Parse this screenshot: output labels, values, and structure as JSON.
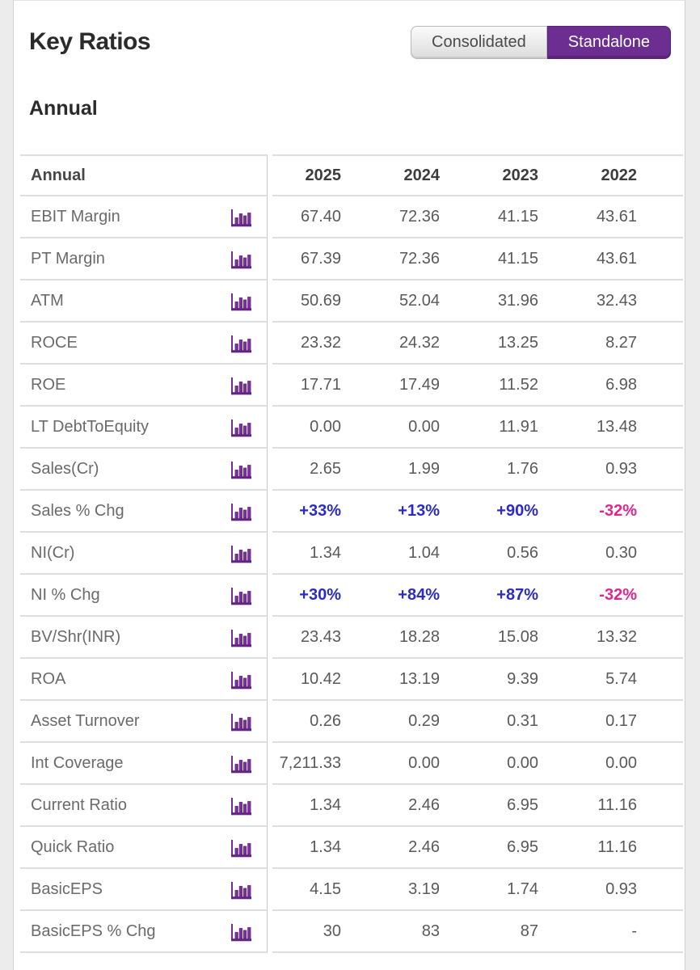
{
  "header": {
    "title": "Key Ratios",
    "toggle": {
      "options": [
        "Consolidated",
        "Standalone"
      ],
      "active": "Standalone"
    }
  },
  "section": {
    "title": "Annual"
  },
  "colors": {
    "accent_purple": "#6c2e91",
    "positive_blue": "#2b2bc8",
    "negative_pink": "#e0268f",
    "icon_purple": "#762d93",
    "row_border": "#dedede"
  },
  "icons": {
    "row_chart_icon": "bar-chart-icon"
  },
  "table": {
    "label_header": "Annual",
    "year_headers": [
      "2025",
      "2024",
      "2023",
      "2022"
    ],
    "rows": [
      {
        "label": "EBIT Margin",
        "values": [
          "67.40",
          "72.36",
          "41.15",
          "43.61"
        ]
      },
      {
        "label": "PT Margin",
        "values": [
          "67.39",
          "72.36",
          "41.15",
          "43.61"
        ]
      },
      {
        "label": "ATM",
        "values": [
          "50.69",
          "52.04",
          "31.96",
          "32.43"
        ]
      },
      {
        "label": "ROCE",
        "values": [
          "23.32",
          "24.32",
          "13.25",
          "8.27"
        ]
      },
      {
        "label": "ROE",
        "values": [
          "17.71",
          "17.49",
          "11.52",
          "6.98"
        ]
      },
      {
        "label": "LT DebtToEquity",
        "values": [
          "0.00",
          "0.00",
          "11.91",
          "13.48"
        ]
      },
      {
        "label": "Sales(Cr)",
        "values": [
          "2.65",
          "1.99",
          "1.76",
          "0.93"
        ]
      },
      {
        "label": "Sales % Chg",
        "values": [
          "+33%",
          "+13%",
          "+90%",
          "-32%"
        ],
        "value_styles": [
          "pos",
          "pos",
          "pos",
          "neg"
        ]
      },
      {
        "label": "NI(Cr)",
        "values": [
          "1.34",
          "1.04",
          "0.56",
          "0.30"
        ]
      },
      {
        "label": "NI % Chg",
        "values": [
          "+30%",
          "+84%",
          "+87%",
          "-32%"
        ],
        "value_styles": [
          "pos",
          "pos",
          "pos",
          "neg"
        ]
      },
      {
        "label": "BV/Shr(INR)",
        "values": [
          "23.43",
          "18.28",
          "15.08",
          "13.32"
        ]
      },
      {
        "label": "ROA",
        "values": [
          "10.42",
          "13.19",
          "9.39",
          "5.74"
        ]
      },
      {
        "label": "Asset Turnover",
        "values": [
          "0.26",
          "0.29",
          "0.31",
          "0.17"
        ]
      },
      {
        "label": "Int Coverage",
        "values": [
          "7,211.33",
          "0.00",
          "0.00",
          "0.00"
        ]
      },
      {
        "label": "Current Ratio",
        "values": [
          "1.34",
          "2.46",
          "6.95",
          "11.16"
        ]
      },
      {
        "label": "Quick Ratio",
        "values": [
          "1.34",
          "2.46",
          "6.95",
          "11.16"
        ]
      },
      {
        "label": "BasicEPS",
        "values": [
          "4.15",
          "3.19",
          "1.74",
          "0.93"
        ]
      },
      {
        "label": "BasicEPS % Chg",
        "values": [
          "30",
          "83",
          "87",
          "-"
        ]
      }
    ]
  }
}
